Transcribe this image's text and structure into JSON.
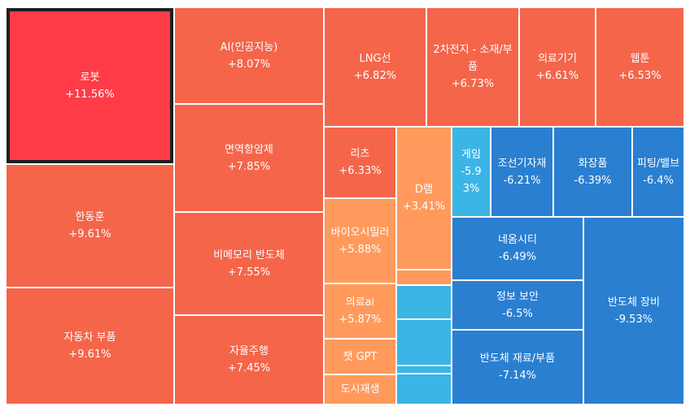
{
  "chart_data": {
    "type": "treemap",
    "colors": {
      "highlight": "#FF3B47",
      "up_strong": "#F5654A",
      "up_mild": "#FF9A5C",
      "down_light": "#3BB5E6",
      "down": "#2A7FD0",
      "selected_border": "#1E1E1E",
      "text": "#FFFFFF"
    },
    "items": [
      {
        "label": "로봇",
        "value": "+11.56%",
        "change": 11.56,
        "color": "highlight",
        "selected": true
      },
      {
        "label": "한동훈",
        "value": "+9.61%",
        "change": 9.61,
        "color": "up_strong"
      },
      {
        "label": "자동차 부품",
        "value": "+9.61%",
        "change": 9.61,
        "color": "up_strong"
      },
      {
        "label": "AI(인공지능)",
        "value": "+8.07%",
        "change": 8.07,
        "color": "up_strong"
      },
      {
        "label": "면역항암제",
        "value": "+7.85%",
        "change": 7.85,
        "color": "up_strong"
      },
      {
        "label": "비메모리 반도체",
        "value": "+7.55%",
        "change": 7.55,
        "color": "up_strong"
      },
      {
        "label": "자율주행",
        "value": "+7.45%",
        "change": 7.45,
        "color": "up_strong"
      },
      {
        "label": "LNG선",
        "value": "+6.82%",
        "change": 6.82,
        "color": "up_strong"
      },
      {
        "label": "2차전지 - 소재/부품",
        "value": "+6.73%",
        "change": 6.73,
        "color": "up_strong"
      },
      {
        "label": "의료기기",
        "value": "+6.61%",
        "change": 6.61,
        "color": "up_strong"
      },
      {
        "label": "웹툰",
        "value": "+6.53%",
        "change": 6.53,
        "color": "up_strong"
      },
      {
        "label": "리츠",
        "value": "+6.33%",
        "change": 6.33,
        "color": "up_strong"
      },
      {
        "label": "바이오시밀러",
        "value": "+5.88%",
        "change": 5.88,
        "color": "up_mild"
      },
      {
        "label": "의료ai",
        "value": "+5.87%",
        "change": 5.87,
        "color": "up_mild"
      },
      {
        "label": "챗 GPT",
        "value": "",
        "change": null,
        "color": "up_mild"
      },
      {
        "label": "도시재생",
        "value": "",
        "change": null,
        "color": "up_mild"
      },
      {
        "label": "D램",
        "value": "+3.41%",
        "change": 3.41,
        "color": "up_mild"
      },
      {
        "label": "",
        "value": "",
        "change": null,
        "color": "up_mild"
      },
      {
        "label": "게임",
        "value": "-5.93%",
        "change": -5.93,
        "color": "down_light"
      },
      {
        "label": "조선기자재",
        "value": "-6.21%",
        "change": -6.21,
        "color": "down"
      },
      {
        "label": "화장품",
        "value": "-6.39%",
        "change": -6.39,
        "color": "down"
      },
      {
        "label": "피팅/밸브",
        "value": "-6.4%",
        "change": -6.4,
        "color": "down"
      },
      {
        "label": "네옴시티",
        "value": "-6.49%",
        "change": -6.49,
        "color": "down"
      },
      {
        "label": "정보 보안",
        "value": "-6.5%",
        "change": -6.5,
        "color": "down"
      },
      {
        "label": "반도체 재료/부품",
        "value": "-7.14%",
        "change": -7.14,
        "color": "down"
      },
      {
        "label": "반도체 장비",
        "value": "-9.53%",
        "change": -9.53,
        "color": "down"
      },
      {
        "label": "",
        "value": "",
        "change": null,
        "color": "down_light"
      },
      {
        "label": "",
        "value": "",
        "change": null,
        "color": "down_light"
      },
      {
        "label": "",
        "value": "",
        "change": null,
        "color": "down_light"
      },
      {
        "label": "",
        "value": "",
        "change": null,
        "color": "down_light"
      }
    ]
  }
}
